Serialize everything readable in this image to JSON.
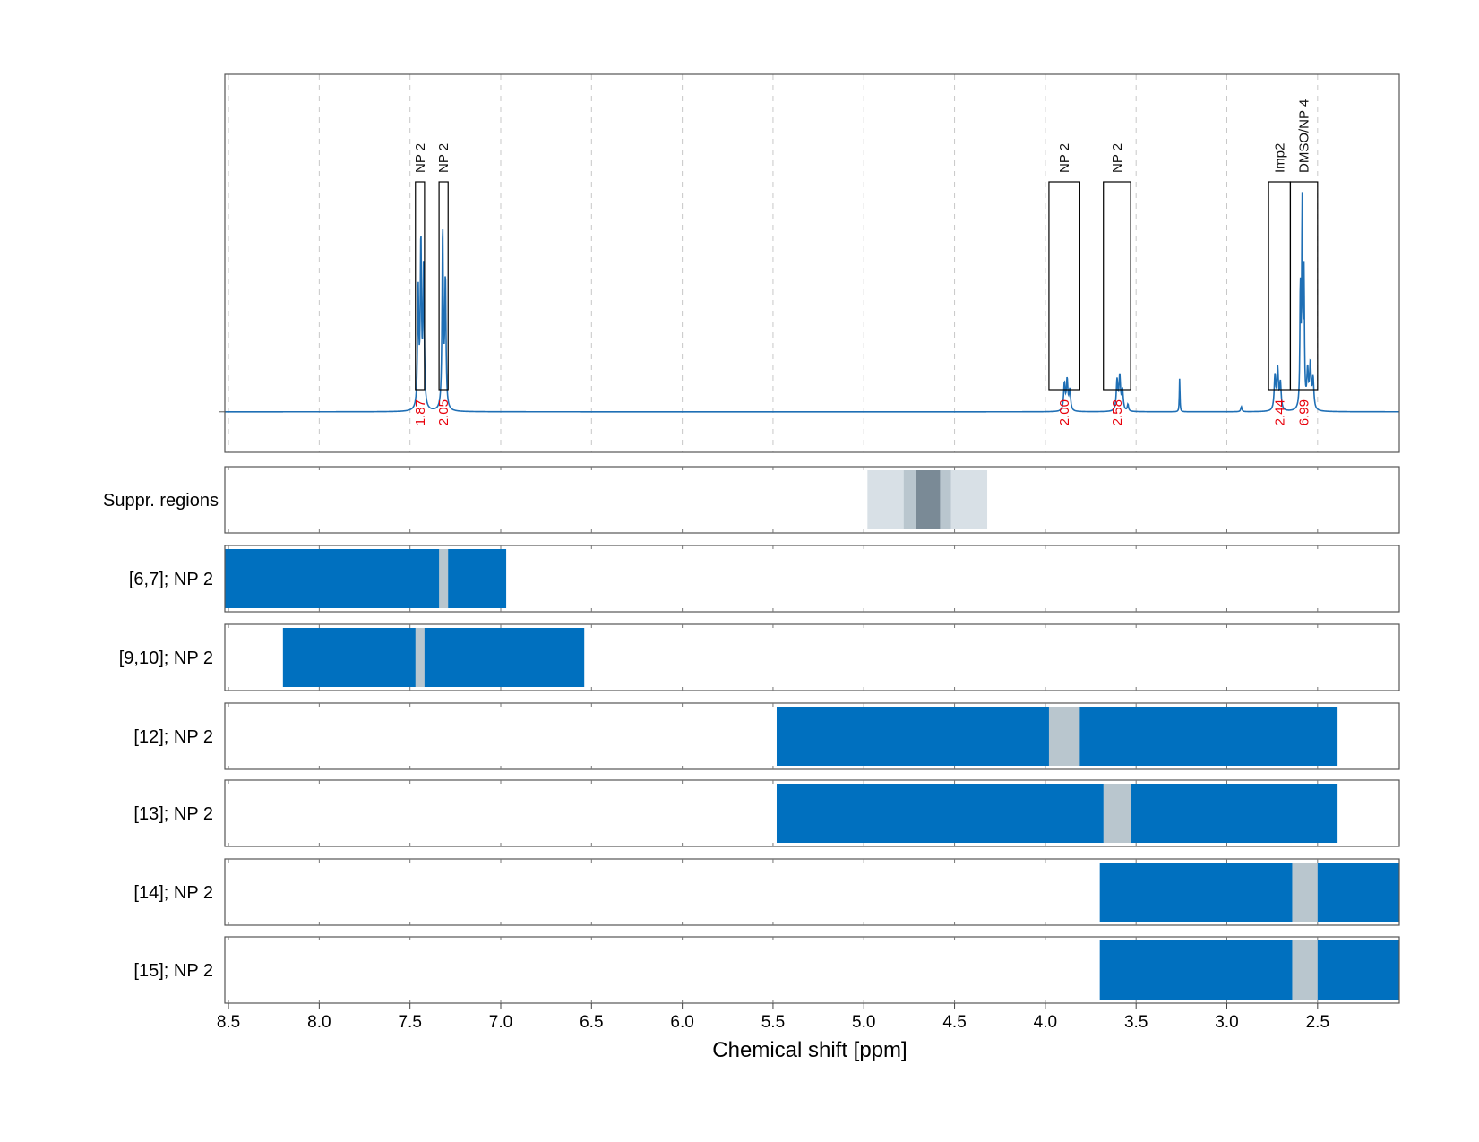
{
  "chart_data": {
    "type": "line",
    "xlabel": "Chemical shift [ppm]",
    "xlim": [
      8.52,
      2.05
    ],
    "x_reversed": true,
    "grid": true,
    "x_ticks": [
      8.5,
      8.0,
      7.5,
      7.0,
      6.5,
      6.0,
      5.5,
      5.0,
      4.5,
      4.0,
      3.5,
      3.0,
      2.5
    ],
    "x_tick_labels": [
      "8.5",
      "8.0",
      "7.5",
      "7.0",
      "6.5",
      "6.0",
      "5.5",
      "5.0",
      "4.5",
      "4.0",
      "3.5",
      "3.0",
      "2.5"
    ],
    "spectrum": {
      "baseline": 0,
      "ylim": [
        -0.12,
        1.0
      ],
      "peaks": [
        {
          "ppm": 7.455,
          "height": 0.35,
          "width": 0.004
        },
        {
          "ppm": 7.44,
          "height": 0.49,
          "width": 0.004
        },
        {
          "ppm": 7.425,
          "height": 0.42,
          "width": 0.004
        },
        {
          "ppm": 7.32,
          "height": 0.53,
          "width": 0.004
        },
        {
          "ppm": 7.305,
          "height": 0.38,
          "width": 0.004
        },
        {
          "ppm": 3.895,
          "height": 0.08,
          "width": 0.005
        },
        {
          "ppm": 3.88,
          "height": 0.09,
          "width": 0.005
        },
        {
          "ppm": 3.865,
          "height": 0.06,
          "width": 0.005
        },
        {
          "ppm": 3.605,
          "height": 0.09,
          "width": 0.005
        },
        {
          "ppm": 3.59,
          "height": 0.1,
          "width": 0.005
        },
        {
          "ppm": 3.575,
          "height": 0.06,
          "width": 0.005
        },
        {
          "ppm": 3.545,
          "height": 0.02,
          "width": 0.004
        },
        {
          "ppm": 3.26,
          "height": 0.1,
          "width": 0.002
        },
        {
          "ppm": 2.735,
          "height": 0.1,
          "width": 0.005
        },
        {
          "ppm": 2.72,
          "height": 0.12,
          "width": 0.005
        },
        {
          "ppm": 2.705,
          "height": 0.08,
          "width": 0.005
        },
        {
          "ppm": 2.595,
          "height": 0.35,
          "width": 0.003
        },
        {
          "ppm": 2.585,
          "height": 0.59,
          "width": 0.003
        },
        {
          "ppm": 2.575,
          "height": 0.38,
          "width": 0.003
        },
        {
          "ppm": 2.555,
          "height": 0.11,
          "width": 0.005
        },
        {
          "ppm": 2.54,
          "height": 0.13,
          "width": 0.005
        },
        {
          "ppm": 2.525,
          "height": 0.09,
          "width": 0.005
        },
        {
          "ppm": 2.92,
          "height": 0.015,
          "width": 0.004
        }
      ]
    },
    "annotations": [
      {
        "label": "NP 2",
        "integral": "1.87",
        "range": [
          7.47,
          7.42
        ]
      },
      {
        "label": "NP 2",
        "integral": "2.05",
        "range": [
          7.34,
          7.29
        ]
      },
      {
        "label": "NP 2",
        "integral": "2.00",
        "range": [
          3.98,
          3.81
        ]
      },
      {
        "label": "NP 2",
        "integral": "2.58",
        "range": [
          3.68,
          3.53
        ]
      },
      {
        "label": "Imp2",
        "integral": "2.44",
        "range": [
          2.77,
          2.65
        ]
      },
      {
        "label": "DMSO/NP 4",
        "integral": "6.99",
        "range": [
          2.65,
          2.5
        ]
      }
    ],
    "row_panels": [
      {
        "label": "Suppr. regions",
        "segments": [
          {
            "from": 4.98,
            "to": 4.32,
            "color": "#d8e0e6"
          },
          {
            "from": 4.78,
            "to": 4.52,
            "color": "#b9c6ce"
          },
          {
            "from": 4.71,
            "to": 4.58,
            "color": "#7a8a96"
          }
        ]
      },
      {
        "label": "[6,7]; NP 2",
        "segments": [
          {
            "from": 8.52,
            "to": 6.97,
            "color": "#0070bf"
          },
          {
            "from": 7.34,
            "to": 7.29,
            "color": "#b9c6ce"
          }
        ]
      },
      {
        "label": "[9,10]; NP 2",
        "segments": [
          {
            "from": 8.2,
            "to": 6.54,
            "color": "#0070bf"
          },
          {
            "from": 7.47,
            "to": 7.42,
            "color": "#b9c6ce"
          }
        ]
      },
      {
        "label": "[12]; NP 2",
        "segments": [
          {
            "from": 5.48,
            "to": 2.39,
            "color": "#0070bf"
          },
          {
            "from": 3.98,
            "to": 3.81,
            "color": "#b9c6ce"
          }
        ]
      },
      {
        "label": "[13]; NP 2",
        "segments": [
          {
            "from": 5.48,
            "to": 2.39,
            "color": "#0070bf"
          },
          {
            "from": 3.68,
            "to": 3.53,
            "color": "#b9c6ce"
          }
        ]
      },
      {
        "label": "[14]; NP 2",
        "segments": [
          {
            "from": 3.7,
            "to": 2.05,
            "color": "#0070bf"
          },
          {
            "from": 2.64,
            "to": 2.5,
            "color": "#b9c6ce"
          }
        ]
      },
      {
        "label": "[15]; NP 2",
        "segments": [
          {
            "from": 3.7,
            "to": 2.05,
            "color": "#0070bf"
          },
          {
            "from": 2.64,
            "to": 2.5,
            "color": "#b9c6ce"
          }
        ]
      }
    ],
    "colors": {
      "spectrum": "#1f6fb5",
      "region": "#0070bf",
      "excluded": "#b9c6ce",
      "integral_text": "#e8000b"
    }
  }
}
